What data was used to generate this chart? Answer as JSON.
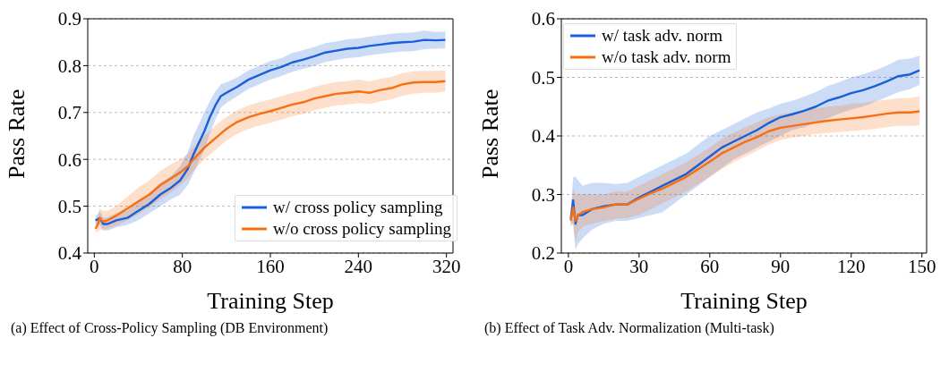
{
  "chart_data": [
    {
      "type": "line",
      "xlabel": "Training Step",
      "ylabel": "Pass Rate",
      "xlim": [
        -6,
        326
      ],
      "xticks": [
        0,
        80,
        160,
        240,
        320
      ],
      "ylim": [
        0.4,
        0.9
      ],
      "yticks": [
        0.4,
        0.5,
        0.6,
        0.7,
        0.8,
        0.9
      ],
      "grid": "y",
      "legend": "bottom right",
      "line_style": "solid",
      "x": [
        1,
        3,
        5,
        8,
        12,
        20,
        30,
        40,
        50,
        60,
        70,
        78,
        85,
        90,
        95,
        100,
        105,
        110,
        115,
        120,
        130,
        140,
        150,
        160,
        170,
        180,
        190,
        200,
        210,
        220,
        230,
        240,
        250,
        260,
        270,
        280,
        290,
        300,
        310,
        319
      ],
      "series": [
        {
          "name": "w/ cross policy sampling",
          "color": "#1a5fd8",
          "values": [
            0.47,
            0.472,
            0.475,
            0.462,
            0.462,
            0.47,
            0.475,
            0.49,
            0.505,
            0.525,
            0.54,
            0.555,
            0.58,
            0.61,
            0.635,
            0.66,
            0.69,
            0.715,
            0.735,
            0.742,
            0.755,
            0.77,
            0.78,
            0.79,
            0.797,
            0.807,
            0.813,
            0.82,
            0.828,
            0.832,
            0.836,
            0.838,
            0.842,
            0.845,
            0.848,
            0.85,
            0.851,
            0.855,
            0.854,
            0.855
          ],
          "lower": [
            0.46,
            0.462,
            0.46,
            0.448,
            0.448,
            0.455,
            0.46,
            0.47,
            0.485,
            0.5,
            0.515,
            0.525,
            0.545,
            0.57,
            0.595,
            0.62,
            0.655,
            0.685,
            0.71,
            0.72,
            0.735,
            0.75,
            0.76,
            0.77,
            0.778,
            0.787,
            0.793,
            0.8,
            0.808,
            0.812,
            0.816,
            0.818,
            0.822,
            0.825,
            0.828,
            0.83,
            0.831,
            0.835,
            0.836,
            0.837
          ],
          "upper": [
            0.48,
            0.482,
            0.49,
            0.476,
            0.476,
            0.485,
            0.49,
            0.51,
            0.525,
            0.55,
            0.565,
            0.585,
            0.615,
            0.65,
            0.675,
            0.7,
            0.725,
            0.745,
            0.76,
            0.764,
            0.775,
            0.79,
            0.8,
            0.81,
            0.816,
            0.827,
            0.833,
            0.84,
            0.848,
            0.852,
            0.856,
            0.858,
            0.862,
            0.865,
            0.868,
            0.87,
            0.871,
            0.875,
            0.872,
            0.873
          ]
        },
        {
          "name": "w/o cross policy sampling",
          "color": "#f86f12",
          "values": [
            0.452,
            0.46,
            0.475,
            0.467,
            0.47,
            0.48,
            0.495,
            0.51,
            0.525,
            0.545,
            0.56,
            0.572,
            0.585,
            0.6,
            0.612,
            0.625,
            0.635,
            0.645,
            0.655,
            0.665,
            0.68,
            0.69,
            0.697,
            0.703,
            0.71,
            0.717,
            0.722,
            0.73,
            0.735,
            0.74,
            0.742,
            0.745,
            0.742,
            0.748,
            0.752,
            0.76,
            0.764,
            0.765,
            0.765,
            0.767
          ],
          "lower": [
            0.445,
            0.445,
            0.45,
            0.45,
            0.452,
            0.458,
            0.47,
            0.483,
            0.498,
            0.515,
            0.53,
            0.545,
            0.56,
            0.575,
            0.588,
            0.6,
            0.61,
            0.62,
            0.63,
            0.64,
            0.655,
            0.665,
            0.672,
            0.678,
            0.685,
            0.692,
            0.697,
            0.705,
            0.71,
            0.715,
            0.717,
            0.72,
            0.718,
            0.724,
            0.728,
            0.736,
            0.74,
            0.742,
            0.742,
            0.745
          ],
          "upper": [
            0.46,
            0.48,
            0.495,
            0.49,
            0.49,
            0.5,
            0.52,
            0.54,
            0.555,
            0.575,
            0.59,
            0.6,
            0.612,
            0.625,
            0.64,
            0.65,
            0.66,
            0.672,
            0.682,
            0.69,
            0.705,
            0.715,
            0.722,
            0.728,
            0.735,
            0.742,
            0.747,
            0.755,
            0.76,
            0.765,
            0.767,
            0.77,
            0.766,
            0.772,
            0.776,
            0.784,
            0.788,
            0.789,
            0.789,
            0.79
          ]
        }
      ],
      "annotations": [
        "(a) Effect of Cross-Policy Sampling (DB Environment)"
      ]
    },
    {
      "type": "line",
      "xlabel": "Training Step",
      "ylabel": "Pass Rate",
      "xlim": [
        -3,
        152
      ],
      "xticks": [
        0,
        30,
        60,
        90,
        120,
        150
      ],
      "ylim": [
        0.2,
        0.6
      ],
      "yticks": [
        0.2,
        0.3,
        0.4,
        0.5,
        0.6
      ],
      "grid": "y",
      "legend": "top left",
      "line_style": "solid",
      "x": [
        1,
        2,
        3,
        4,
        6,
        10,
        15,
        20,
        25,
        30,
        35,
        40,
        45,
        50,
        55,
        60,
        65,
        70,
        75,
        80,
        85,
        90,
        95,
        100,
        105,
        110,
        115,
        120,
        125,
        130,
        135,
        140,
        145,
        149
      ],
      "series": [
        {
          "name": "w/ task adv. norm",
          "color": "#1a5fd8",
          "values": [
            0.258,
            0.29,
            0.25,
            0.265,
            0.265,
            0.275,
            0.28,
            0.283,
            0.283,
            0.295,
            0.305,
            0.315,
            0.325,
            0.335,
            0.35,
            0.365,
            0.38,
            0.39,
            0.4,
            0.41,
            0.422,
            0.432,
            0.437,
            0.443,
            0.45,
            0.46,
            0.466,
            0.473,
            0.478,
            0.485,
            0.493,
            0.502,
            0.505,
            0.512
          ],
          "lower": [
            0.245,
            0.25,
            0.205,
            0.215,
            0.225,
            0.24,
            0.25,
            0.255,
            0.255,
            0.26,
            0.265,
            0.27,
            0.285,
            0.3,
            0.315,
            0.33,
            0.345,
            0.36,
            0.37,
            0.38,
            0.39,
            0.4,
            0.41,
            0.415,
            0.422,
            0.43,
            0.438,
            0.445,
            0.45,
            0.458,
            0.466,
            0.475,
            0.48,
            0.487
          ],
          "upper": [
            0.27,
            0.33,
            0.33,
            0.325,
            0.315,
            0.32,
            0.32,
            0.318,
            0.32,
            0.33,
            0.34,
            0.35,
            0.36,
            0.37,
            0.385,
            0.4,
            0.41,
            0.42,
            0.43,
            0.44,
            0.447,
            0.455,
            0.46,
            0.467,
            0.475,
            0.485,
            0.492,
            0.5,
            0.505,
            0.512,
            0.52,
            0.53,
            0.532,
            0.537
          ]
        },
        {
          "name": "w/o task adv. norm",
          "color": "#f86f12",
          "values": [
            0.255,
            0.278,
            0.255,
            0.265,
            0.27,
            0.275,
            0.278,
            0.283,
            0.283,
            0.293,
            0.302,
            0.31,
            0.32,
            0.33,
            0.343,
            0.356,
            0.37,
            0.38,
            0.39,
            0.398,
            0.408,
            0.414,
            0.417,
            0.42,
            0.423,
            0.426,
            0.428,
            0.43,
            0.432,
            0.435,
            0.438,
            0.44,
            0.44,
            0.442
          ],
          "lower": [
            0.25,
            0.25,
            0.22,
            0.235,
            0.245,
            0.25,
            0.255,
            0.258,
            0.26,
            0.265,
            0.275,
            0.285,
            0.295,
            0.305,
            0.318,
            0.33,
            0.343,
            0.355,
            0.365,
            0.375,
            0.385,
            0.393,
            0.397,
            0.4,
            0.403,
            0.405,
            0.407,
            0.408,
            0.41,
            0.412,
            0.415,
            0.417,
            0.417,
            0.418
          ],
          "upper": [
            0.26,
            0.31,
            0.3,
            0.3,
            0.3,
            0.3,
            0.3,
            0.305,
            0.305,
            0.315,
            0.325,
            0.335,
            0.345,
            0.355,
            0.368,
            0.38,
            0.395,
            0.405,
            0.415,
            0.423,
            0.432,
            0.437,
            0.44,
            0.443,
            0.447,
            0.45,
            0.452,
            0.455,
            0.456,
            0.459,
            0.462,
            0.464,
            0.465,
            0.467
          ]
        }
      ],
      "annotations": [
        "(b) Effect of Task Adv. Normalization (Multi-task)"
      ]
    }
  ]
}
